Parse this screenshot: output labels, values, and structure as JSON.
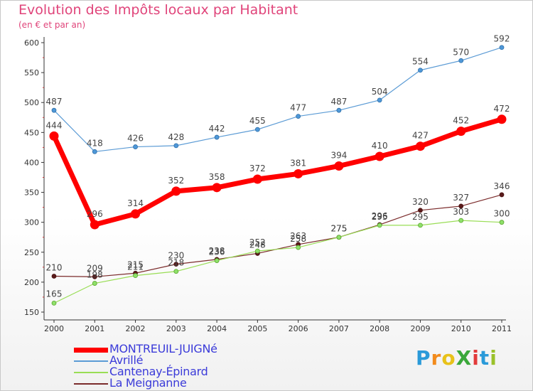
{
  "title": "Evolution des Impôts locaux par Habitant",
  "subtitle": "(en € et par an)",
  "logo": {
    "text": "ProXiti",
    "colors": [
      "#2a9ad9",
      "#f28b1c",
      "#e8c21a",
      "#3aa83a",
      "#e23b3b",
      "#2a9ad9",
      "#9ac12a"
    ]
  },
  "chart_data": {
    "type": "line",
    "x": [
      "2000",
      "2001",
      "2002",
      "2003",
      "2004",
      "2005",
      "2006",
      "2007",
      "2008",
      "2009",
      "2010",
      "2011"
    ],
    "ylim": [
      150,
      600
    ],
    "yticks": [
      "150",
      "200",
      "250",
      "300",
      "350",
      "400",
      "450",
      "500",
      "550",
      "600"
    ],
    "grid": false,
    "legend_position": "bottom-left",
    "series": [
      {
        "name": "MONTREUIL-JUIGNé",
        "color": "#ff0000",
        "values": [
          444,
          296,
          314,
          352,
          358,
          372,
          381,
          394,
          410,
          427,
          452,
          472
        ],
        "labels": [
          "444",
          "296",
          "314",
          "352",
          "358",
          "372",
          "381",
          "394",
          "410",
          "427",
          "452",
          "472"
        ]
      },
      {
        "name": "Avrillé",
        "color": "#5b9bd5",
        "values": [
          487,
          418,
          426,
          428,
          442,
          455,
          477,
          487,
          504,
          554,
          570,
          592
        ],
        "labels": [
          "487",
          "418",
          "426",
          "428",
          "442",
          "455",
          "477",
          "487",
          "504",
          "554",
          "570",
          "592"
        ]
      },
      {
        "name": "Cantenay-Épinard",
        "color": "#99dd55",
        "values": [
          165,
          198,
          211,
          218,
          236,
          252,
          258,
          275,
          295,
          295,
          303,
          300
        ],
        "labels": [
          "165",
          "198",
          "211",
          "218",
          "236",
          "252",
          "258",
          "275",
          "295",
          "295",
          "303",
          "300"
        ]
      },
      {
        "name": "La Meignanne",
        "color": "#7b2b2b",
        "values": [
          210,
          209,
          215,
          230,
          238,
          248,
          263,
          275,
          296,
          320,
          327,
          346
        ],
        "labels": [
          "210",
          "209",
          "215",
          "230",
          "238",
          "248",
          "263",
          "275",
          "296",
          "320",
          "327",
          "346"
        ]
      }
    ]
  }
}
